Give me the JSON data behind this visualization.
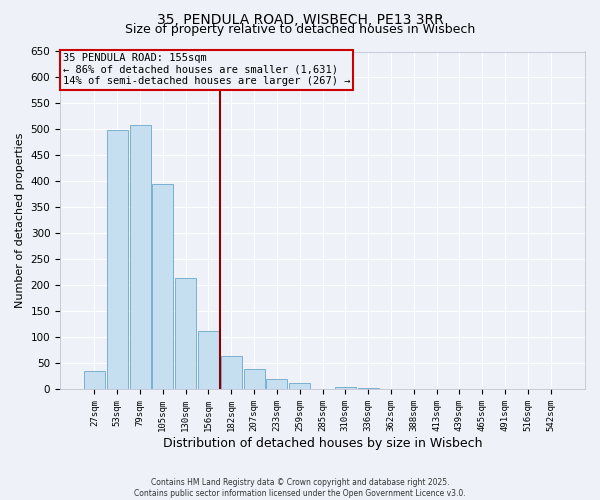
{
  "title": "35, PENDULA ROAD, WISBECH, PE13 3RR",
  "subtitle": "Size of property relative to detached houses in Wisbech",
  "xlabel": "Distribution of detached houses by size in Wisbech",
  "ylabel": "Number of detached properties",
  "bar_labels": [
    "27sqm",
    "53sqm",
    "79sqm",
    "105sqm",
    "130sqm",
    "156sqm",
    "182sqm",
    "207sqm",
    "233sqm",
    "259sqm",
    "285sqm",
    "310sqm",
    "336sqm",
    "362sqm",
    "388sqm",
    "413sqm",
    "439sqm",
    "465sqm",
    "491sqm",
    "516sqm",
    "542sqm"
  ],
  "bar_values": [
    35,
    499,
    508,
    395,
    215,
    113,
    64,
    40,
    20,
    12,
    0,
    5,
    2,
    0,
    0,
    0,
    1,
    0,
    0,
    0,
    0
  ],
  "bar_color": "#c5dff0",
  "bar_edge_color": "#7ab0d0",
  "ylim": [
    0,
    650
  ],
  "yticks": [
    0,
    50,
    100,
    150,
    200,
    250,
    300,
    350,
    400,
    450,
    500,
    550,
    600,
    650
  ],
  "vline_x": 5.5,
  "vline_color": "#8b0000",
  "annotation_title": "35 PENDULA ROAD: 155sqm",
  "annotation_line1": "← 86% of detached houses are smaller (1,631)",
  "annotation_line2": "14% of semi-detached houses are larger (267) →",
  "annotation_box_color": "#cc0000",
  "bg_color": "#eef2f8",
  "grid_color": "#ffffff",
  "footer1": "Contains HM Land Registry data © Crown copyright and database right 2025.",
  "footer2": "Contains public sector information licensed under the Open Government Licence v3.0.",
  "title_fontsize": 10,
  "subtitle_fontsize": 9,
  "ylabel_fontsize": 8,
  "xlabel_fontsize": 9
}
